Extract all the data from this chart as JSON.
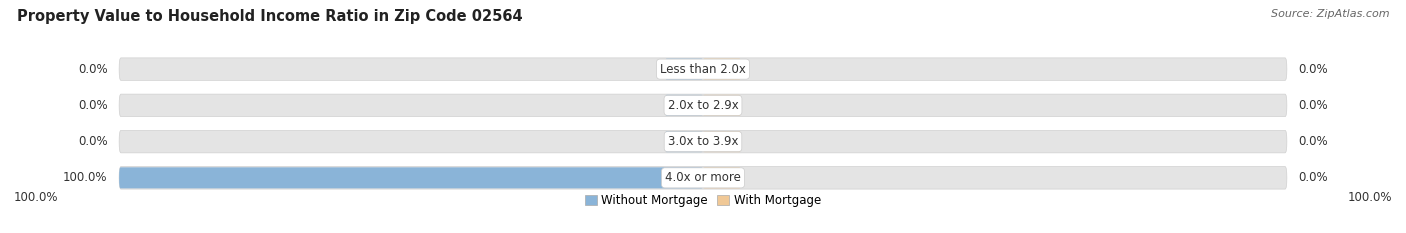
{
  "title": "Property Value to Household Income Ratio in Zip Code 02564",
  "source": "Source: ZipAtlas.com",
  "categories": [
    "Less than 2.0x",
    "2.0x to 2.9x",
    "3.0x to 3.9x",
    "4.0x or more"
  ],
  "without_mortgage": [
    0.0,
    0.0,
    0.0,
    100.0
  ],
  "with_mortgage": [
    0.0,
    0.0,
    0.0,
    0.0
  ],
  "color_without": "#8ab4d8",
  "color_with": "#f0c896",
  "bar_bg_color": "#e4e4e4",
  "bar_bg_outline": "#d0d0d0",
  "bar_height": 0.62,
  "min_segment": 6.5,
  "title_fontsize": 10.5,
  "source_fontsize": 8,
  "label_fontsize": 8.5,
  "tick_fontsize": 8.5,
  "legend_fontsize": 8.5,
  "background_color": "#ffffff",
  "axis_bg_color": "#f0f0f0",
  "row_sep_color": "#ffffff"
}
